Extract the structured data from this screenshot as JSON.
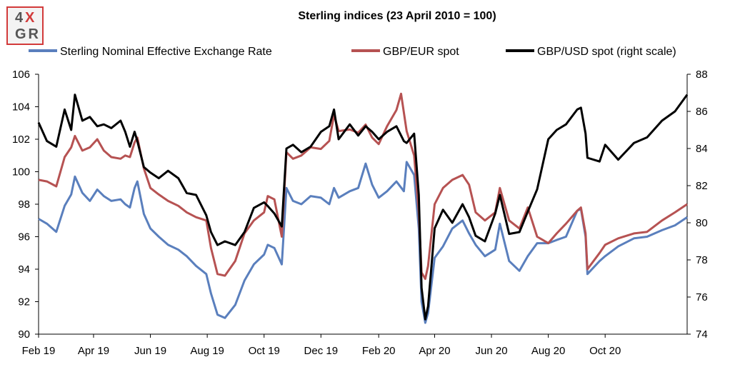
{
  "logo": {
    "line1_a": "4",
    "line1_b": "X",
    "line2": "GR"
  },
  "chart_data": {
    "type": "line",
    "title": "Sterling indices (23 April 2010 = 100)",
    "x_range": [
      "2019-02-01",
      "2020-12-28"
    ],
    "x_ticks": [
      {
        "label": "Feb 19",
        "date": "2019-02-01"
      },
      {
        "label": "Apr 19",
        "date": "2019-04-01"
      },
      {
        "label": "Jun 19",
        "date": "2019-06-01"
      },
      {
        "label": "Aug 19",
        "date": "2019-08-01"
      },
      {
        "label": "Oct 19",
        "date": "2019-10-01"
      },
      {
        "label": "Dec 19",
        "date": "2019-12-01"
      },
      {
        "label": "Feb 20",
        "date": "2020-02-01"
      },
      {
        "label": "Apr 20",
        "date": "2020-04-01"
      },
      {
        "label": "Jun 20",
        "date": "2020-06-01"
      },
      {
        "label": "Aug 20",
        "date": "2020-08-01"
      },
      {
        "label": "Oct 20",
        "date": "2020-10-01"
      }
    ],
    "y_left": {
      "min": 90,
      "max": 106,
      "ticks": [
        "90",
        "92",
        "94",
        "96",
        "98",
        "100",
        "102",
        "104",
        "106"
      ]
    },
    "y_right": {
      "min": 74,
      "max": 88,
      "ticks": [
        "74",
        "76",
        "78",
        "80",
        "82",
        "84",
        "86",
        "88"
      ]
    },
    "grid": false,
    "legend_position": "top",
    "series": [
      {
        "name": "Sterling Nominal Effective Exchange Rate",
        "color": "#5a7fbd",
        "axis": "left",
        "points": [
          [
            "2019-02-01",
            97.1
          ],
          [
            "2019-02-10",
            96.8
          ],
          [
            "2019-02-20",
            96.3
          ],
          [
            "2019-03-01",
            97.9
          ],
          [
            "2019-03-08",
            98.6
          ],
          [
            "2019-03-12",
            99.7
          ],
          [
            "2019-03-20",
            98.7
          ],
          [
            "2019-03-28",
            98.2
          ],
          [
            "2019-04-05",
            98.9
          ],
          [
            "2019-04-12",
            98.5
          ],
          [
            "2019-04-20",
            98.2
          ],
          [
            "2019-04-30",
            98.3
          ],
          [
            "2019-05-05",
            98.0
          ],
          [
            "2019-05-10",
            97.8
          ],
          [
            "2019-05-15",
            99.0
          ],
          [
            "2019-05-18",
            99.4
          ],
          [
            "2019-05-25",
            97.4
          ],
          [
            "2019-06-01",
            96.5
          ],
          [
            "2019-06-10",
            96.0
          ],
          [
            "2019-06-20",
            95.5
          ],
          [
            "2019-07-01",
            95.2
          ],
          [
            "2019-07-10",
            94.8
          ],
          [
            "2019-07-20",
            94.2
          ],
          [
            "2019-07-31",
            93.7
          ],
          [
            "2019-08-05",
            92.5
          ],
          [
            "2019-08-12",
            91.2
          ],
          [
            "2019-08-20",
            91.0
          ],
          [
            "2019-08-31",
            91.8
          ],
          [
            "2019-09-10",
            93.3
          ],
          [
            "2019-09-20",
            94.3
          ],
          [
            "2019-10-01",
            94.9
          ],
          [
            "2019-10-05",
            95.5
          ],
          [
            "2019-10-12",
            95.3
          ],
          [
            "2019-10-20",
            94.3
          ],
          [
            "2019-10-25",
            99.0
          ],
          [
            "2019-11-01",
            98.2
          ],
          [
            "2019-11-10",
            98.0
          ],
          [
            "2019-11-20",
            98.5
          ],
          [
            "2019-12-01",
            98.4
          ],
          [
            "2019-12-10",
            98.0
          ],
          [
            "2019-12-15",
            99.0
          ],
          [
            "2019-12-20",
            98.4
          ],
          [
            "2020-01-01",
            98.8
          ],
          [
            "2020-01-10",
            99.0
          ],
          [
            "2020-01-18",
            100.5
          ],
          [
            "2020-01-25",
            99.2
          ],
          [
            "2020-02-01",
            98.4
          ],
          [
            "2020-02-10",
            98.8
          ],
          [
            "2020-02-20",
            99.4
          ],
          [
            "2020-02-28",
            98.8
          ],
          [
            "2020-03-02",
            100.6
          ],
          [
            "2020-03-10",
            99.8
          ],
          [
            "2020-03-15",
            96.5
          ],
          [
            "2020-03-18",
            92.0
          ],
          [
            "2020-03-22",
            90.7
          ],
          [
            "2020-03-25",
            91.3
          ],
          [
            "2020-04-01",
            94.7
          ],
          [
            "2020-04-10",
            95.4
          ],
          [
            "2020-04-20",
            96.5
          ],
          [
            "2020-05-01",
            97.0
          ],
          [
            "2020-05-08",
            96.2
          ],
          [
            "2020-05-15",
            95.5
          ],
          [
            "2020-05-25",
            94.8
          ],
          [
            "2020-06-05",
            95.2
          ],
          [
            "2020-06-10",
            96.8
          ],
          [
            "2020-06-20",
            94.5
          ],
          [
            "2020-07-01",
            93.9
          ],
          [
            "2020-07-10",
            94.8
          ],
          [
            "2020-07-20",
            95.6
          ],
          [
            "2020-08-01",
            95.6
          ],
          [
            "2020-08-10",
            95.8
          ],
          [
            "2020-08-20",
            96.0
          ],
          [
            "2020-09-01",
            97.6
          ],
          [
            "2020-09-05",
            97.7
          ],
          [
            "2020-09-10",
            96.0
          ],
          [
            "2020-09-12",
            93.7
          ],
          [
            "2020-09-25",
            94.5
          ],
          [
            "2020-10-01",
            94.8
          ],
          [
            "2020-10-15",
            95.4
          ],
          [
            "2020-11-01",
            95.9
          ],
          [
            "2020-11-15",
            96.0
          ],
          [
            "2020-12-01",
            96.4
          ],
          [
            "2020-12-15",
            96.7
          ],
          [
            "2020-12-28",
            97.2
          ]
        ]
      },
      {
        "name": "GBP/EUR spot",
        "color": "#b65252",
        "axis": "left",
        "points": [
          [
            "2019-02-01",
            99.5
          ],
          [
            "2019-02-10",
            99.4
          ],
          [
            "2019-02-20",
            99.1
          ],
          [
            "2019-03-01",
            100.9
          ],
          [
            "2019-03-08",
            101.5
          ],
          [
            "2019-03-12",
            102.2
          ],
          [
            "2019-03-20",
            101.3
          ],
          [
            "2019-03-28",
            101.5
          ],
          [
            "2019-04-05",
            102.0
          ],
          [
            "2019-04-12",
            101.3
          ],
          [
            "2019-04-20",
            100.9
          ],
          [
            "2019-04-30",
            100.8
          ],
          [
            "2019-05-05",
            101.0
          ],
          [
            "2019-05-10",
            100.9
          ],
          [
            "2019-05-15",
            101.8
          ],
          [
            "2019-05-18",
            102.1
          ],
          [
            "2019-05-25",
            100.2
          ],
          [
            "2019-06-01",
            99.0
          ],
          [
            "2019-06-10",
            98.6
          ],
          [
            "2019-06-20",
            98.2
          ],
          [
            "2019-07-01",
            97.9
          ],
          [
            "2019-07-10",
            97.5
          ],
          [
            "2019-07-20",
            97.2
          ],
          [
            "2019-07-31",
            97.0
          ],
          [
            "2019-08-05",
            95.3
          ],
          [
            "2019-08-12",
            93.7
          ],
          [
            "2019-08-20",
            93.6
          ],
          [
            "2019-08-31",
            94.5
          ],
          [
            "2019-09-10",
            96.2
          ],
          [
            "2019-09-20",
            97.0
          ],
          [
            "2019-10-01",
            97.5
          ],
          [
            "2019-10-05",
            98.5
          ],
          [
            "2019-10-12",
            98.3
          ],
          [
            "2019-10-20",
            96.0
          ],
          [
            "2019-10-25",
            101.2
          ],
          [
            "2019-11-01",
            100.8
          ],
          [
            "2019-11-10",
            101.0
          ],
          [
            "2019-11-20",
            101.5
          ],
          [
            "2019-12-01",
            101.4
          ],
          [
            "2019-12-10",
            101.9
          ],
          [
            "2019-12-15",
            103.5
          ],
          [
            "2019-12-20",
            102.5
          ],
          [
            "2020-01-01",
            102.6
          ],
          [
            "2020-01-10",
            102.4
          ],
          [
            "2020-01-18",
            102.9
          ],
          [
            "2020-01-25",
            102.1
          ],
          [
            "2020-02-01",
            101.7
          ],
          [
            "2020-02-10",
            102.8
          ],
          [
            "2020-02-20",
            103.8
          ],
          [
            "2020-02-25",
            104.8
          ],
          [
            "2020-03-02",
            102.5
          ],
          [
            "2020-03-10",
            101.0
          ],
          [
            "2020-03-15",
            97.5
          ],
          [
            "2020-03-18",
            93.8
          ],
          [
            "2020-03-22",
            93.4
          ],
          [
            "2020-03-25",
            94.2
          ],
          [
            "2020-04-01",
            98.0
          ],
          [
            "2020-04-10",
            99.0
          ],
          [
            "2020-04-20",
            99.5
          ],
          [
            "2020-05-01",
            99.8
          ],
          [
            "2020-05-08",
            99.2
          ],
          [
            "2020-05-15",
            97.5
          ],
          [
            "2020-05-25",
            97.0
          ],
          [
            "2020-06-05",
            97.5
          ],
          [
            "2020-06-10",
            99.0
          ],
          [
            "2020-06-20",
            97.0
          ],
          [
            "2020-07-01",
            96.5
          ],
          [
            "2020-07-10",
            97.8
          ],
          [
            "2020-07-20",
            96.0
          ],
          [
            "2020-08-01",
            95.6
          ],
          [
            "2020-08-10",
            96.2
          ],
          [
            "2020-08-20",
            96.8
          ],
          [
            "2020-09-01",
            97.6
          ],
          [
            "2020-09-05",
            97.8
          ],
          [
            "2020-09-10",
            96.2
          ],
          [
            "2020-09-12",
            94.0
          ],
          [
            "2020-09-25",
            95.0
          ],
          [
            "2020-10-01",
            95.5
          ],
          [
            "2020-10-15",
            95.9
          ],
          [
            "2020-11-01",
            96.2
          ],
          [
            "2020-11-15",
            96.3
          ],
          [
            "2020-12-01",
            97.0
          ],
          [
            "2020-12-15",
            97.5
          ],
          [
            "2020-12-28",
            98.0
          ]
        ]
      },
      {
        "name": "GBP/USD spot (right scale)",
        "color": "#000000",
        "axis": "right",
        "points": [
          [
            "2019-02-01",
            85.4
          ],
          [
            "2019-02-10",
            84.4
          ],
          [
            "2019-02-20",
            84.1
          ],
          [
            "2019-03-01",
            86.1
          ],
          [
            "2019-03-08",
            85.0
          ],
          [
            "2019-03-12",
            86.9
          ],
          [
            "2019-03-20",
            85.5
          ],
          [
            "2019-03-28",
            85.7
          ],
          [
            "2019-04-05",
            85.2
          ],
          [
            "2019-04-12",
            85.3
          ],
          [
            "2019-04-20",
            85.1
          ],
          [
            "2019-04-30",
            85.5
          ],
          [
            "2019-05-05",
            84.9
          ],
          [
            "2019-05-10",
            84.1
          ],
          [
            "2019-05-15",
            84.9
          ],
          [
            "2019-05-18",
            84.4
          ],
          [
            "2019-05-25",
            83.0
          ],
          [
            "2019-06-01",
            82.7
          ],
          [
            "2019-06-10",
            82.4
          ],
          [
            "2019-06-20",
            82.8
          ],
          [
            "2019-07-01",
            82.4
          ],
          [
            "2019-07-10",
            81.6
          ],
          [
            "2019-07-20",
            81.5
          ],
          [
            "2019-07-31",
            80.4
          ],
          [
            "2019-08-05",
            79.5
          ],
          [
            "2019-08-12",
            78.8
          ],
          [
            "2019-08-20",
            79.0
          ],
          [
            "2019-08-31",
            78.8
          ],
          [
            "2019-09-10",
            79.5
          ],
          [
            "2019-09-20",
            80.8
          ],
          [
            "2019-10-01",
            81.1
          ],
          [
            "2019-10-05",
            80.9
          ],
          [
            "2019-10-12",
            80.5
          ],
          [
            "2019-10-20",
            79.8
          ],
          [
            "2019-10-25",
            84.0
          ],
          [
            "2019-11-01",
            84.2
          ],
          [
            "2019-11-10",
            83.8
          ],
          [
            "2019-11-20",
            84.1
          ],
          [
            "2019-12-01",
            84.9
          ],
          [
            "2019-12-10",
            85.2
          ],
          [
            "2019-12-15",
            86.1
          ],
          [
            "2019-12-20",
            84.5
          ],
          [
            "2020-01-01",
            85.3
          ],
          [
            "2020-01-10",
            84.7
          ],
          [
            "2020-01-18",
            85.2
          ],
          [
            "2020-01-25",
            84.9
          ],
          [
            "2020-02-01",
            84.5
          ],
          [
            "2020-02-10",
            84.9
          ],
          [
            "2020-02-20",
            85.2
          ],
          [
            "2020-02-28",
            84.4
          ],
          [
            "2020-03-02",
            84.3
          ],
          [
            "2020-03-10",
            84.8
          ],
          [
            "2020-03-15",
            81.5
          ],
          [
            "2020-03-18",
            76.5
          ],
          [
            "2020-03-22",
            74.8
          ],
          [
            "2020-03-25",
            75.5
          ],
          [
            "2020-04-01",
            79.7
          ],
          [
            "2020-04-10",
            80.7
          ],
          [
            "2020-04-20",
            80.0
          ],
          [
            "2020-05-01",
            81.0
          ],
          [
            "2020-05-08",
            80.3
          ],
          [
            "2020-05-15",
            79.3
          ],
          [
            "2020-05-25",
            79.0
          ],
          [
            "2020-06-05",
            80.5
          ],
          [
            "2020-06-10",
            81.5
          ],
          [
            "2020-06-20",
            79.4
          ],
          [
            "2020-07-01",
            79.5
          ],
          [
            "2020-07-10",
            80.6
          ],
          [
            "2020-07-20",
            81.8
          ],
          [
            "2020-08-01",
            84.5
          ],
          [
            "2020-08-10",
            85.0
          ],
          [
            "2020-08-20",
            85.3
          ],
          [
            "2020-09-01",
            86.1
          ],
          [
            "2020-09-05",
            86.2
          ],
          [
            "2020-09-10",
            84.8
          ],
          [
            "2020-09-12",
            83.5
          ],
          [
            "2020-09-25",
            83.3
          ],
          [
            "2020-10-01",
            84.2
          ],
          [
            "2020-10-15",
            83.4
          ],
          [
            "2020-11-01",
            84.3
          ],
          [
            "2020-11-15",
            84.6
          ],
          [
            "2020-12-01",
            85.5
          ],
          [
            "2020-12-15",
            86.0
          ],
          [
            "2020-12-28",
            86.9
          ]
        ]
      }
    ]
  }
}
